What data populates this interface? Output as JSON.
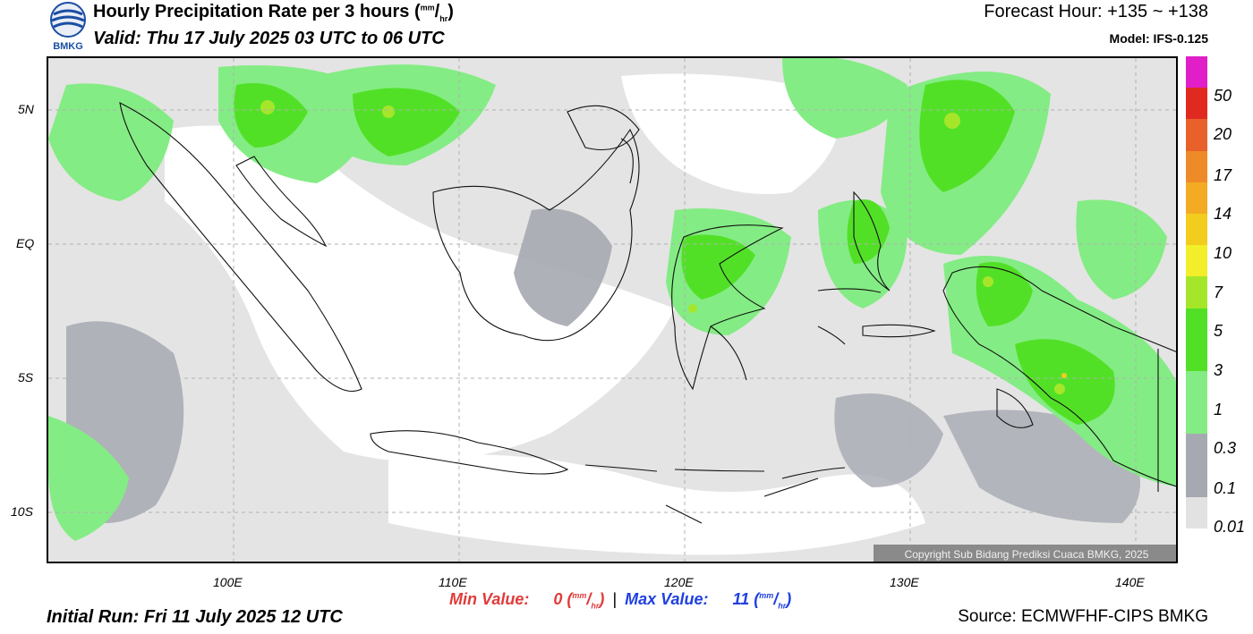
{
  "header": {
    "title": "Hourly Precipitation Rate per 3 hours",
    "unit_sup": "mm",
    "unit_sub": "hr",
    "valid": "Valid: Thu 17 July 2025 03 UTC to 06 UTC",
    "forecast_hour": "Forecast Hour: +135 ~ +138",
    "model": "Model: IFS-0.125",
    "logo_text": "BMKG"
  },
  "map": {
    "lat_labels": [
      "5N",
      "EQ",
      "5S",
      "10S"
    ],
    "lon_labels": [
      "100E",
      "110E",
      "120E",
      "130E",
      "140E"
    ],
    "copyright": "Copyright Sub Bidang Prediksi Cuaca BMKG, 2025"
  },
  "colorbar": {
    "labels": [
      "50",
      "20",
      "17",
      "14",
      "10",
      "7",
      "5",
      "3",
      "1",
      "0.3",
      "0.1",
      "0.01"
    ],
    "colors": [
      "#e01fc8",
      "#e02a1f",
      "#e8602a",
      "#ef8a28",
      "#f2ab23",
      "#f2cd1e",
      "#f2ee2a",
      "#a6e62a",
      "#52e027",
      "#84ec84",
      "#a6a9b1",
      "#e2e2e2"
    ]
  },
  "footer": {
    "min_label": "Min Value:",
    "min_value": "0",
    "max_label": "Max Value:",
    "max_value": "11",
    "unit_sup": "mm",
    "unit_sub": "hr",
    "separator": "|",
    "initial_run": "Initial Run: Fri 11 July 2025 12 UTC",
    "source": "Source: ECMWFHF-CIPS BMKG"
  }
}
